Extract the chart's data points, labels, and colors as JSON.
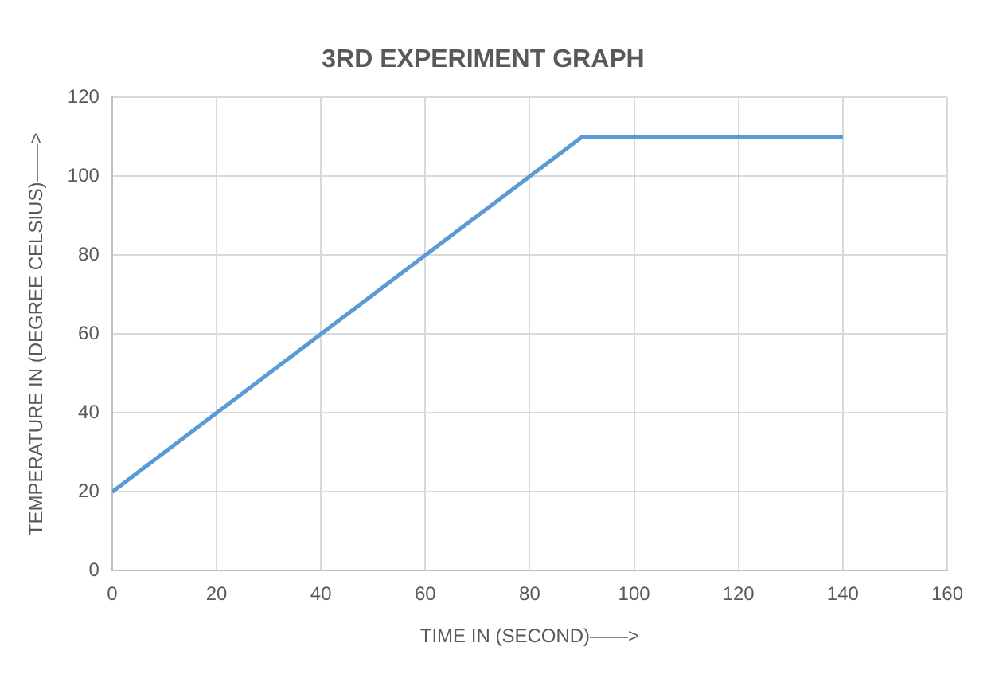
{
  "chart_data": {
    "type": "line",
    "title": "3RD EXPERIMENT GRAPH",
    "xlabel": "TIME IN (SECOND)——>",
    "ylabel": "TEMPERATURE IN (DEGREE CELSIUS)——>",
    "x": [
      0,
      90,
      140
    ],
    "series": [
      {
        "color": "#5b9bd5",
        "values": [
          20,
          110,
          110
        ]
      }
    ],
    "xlim": [
      0,
      160
    ],
    "xticks": [
      0,
      20,
      40,
      60,
      80,
      100,
      120,
      140,
      160
    ],
    "ylim": [
      0,
      120
    ],
    "yticks": [
      0,
      20,
      40,
      60,
      80,
      100,
      120
    ],
    "grid": true,
    "legend": false,
    "marker": "none",
    "line_style": "solid"
  }
}
